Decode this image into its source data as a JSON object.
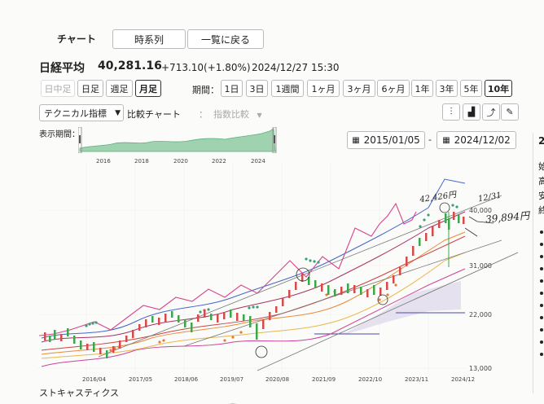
{
  "tabs": {
    "chart": "チャート",
    "timeseries": "時系列",
    "back_to_list": "一覧に戻る"
  },
  "quote": {
    "name": "日経平均",
    "price": "40,281.16",
    "change": "+713.10(+1.80%)",
    "datetime": "2024/12/27 15:30"
  },
  "intervals": [
    "日中足",
    "日足",
    "週足",
    "月足"
  ],
  "selected_interval": "月足",
  "period_label": "期間：",
  "periods": [
    "1日",
    "3日",
    "1週間",
    "1ヶ月",
    "3ヶ月",
    "6ヶ月",
    "1年",
    "3年",
    "5年",
    "10年"
  ],
  "selected_period": "10年",
  "controls": {
    "technical": "テクニカル指標",
    "compare": "比較チャート",
    "colon": "：",
    "index_compare": "指数比較"
  },
  "range": {
    "label": "表示期間：",
    "from": "2015/01/05",
    "dash": "-",
    "to": "2024/12/02",
    "years": [
      "2016",
      "2018",
      "2020",
      "2022",
      "2024"
    ]
  },
  "chart_data": {
    "type": "candlestick",
    "y_ticks": [
      "40,000",
      "31,000",
      "22,000",
      "13,000"
    ],
    "x_ticks": [
      "2016/04",
      "2017/05",
      "2018/06",
      "2019/07",
      "2020/08",
      "2021/09",
      "2022/10",
      "2023/11",
      "2024/12"
    ],
    "annotations": {
      "peak": "42,426円",
      "date": "12/31",
      "close": "39,894円"
    }
  },
  "stochastics_label": "ストキャスティクス",
  "right_partial": {
    "value": "2",
    "chars": [
      "始",
      "高",
      "安",
      "終"
    ]
  }
}
